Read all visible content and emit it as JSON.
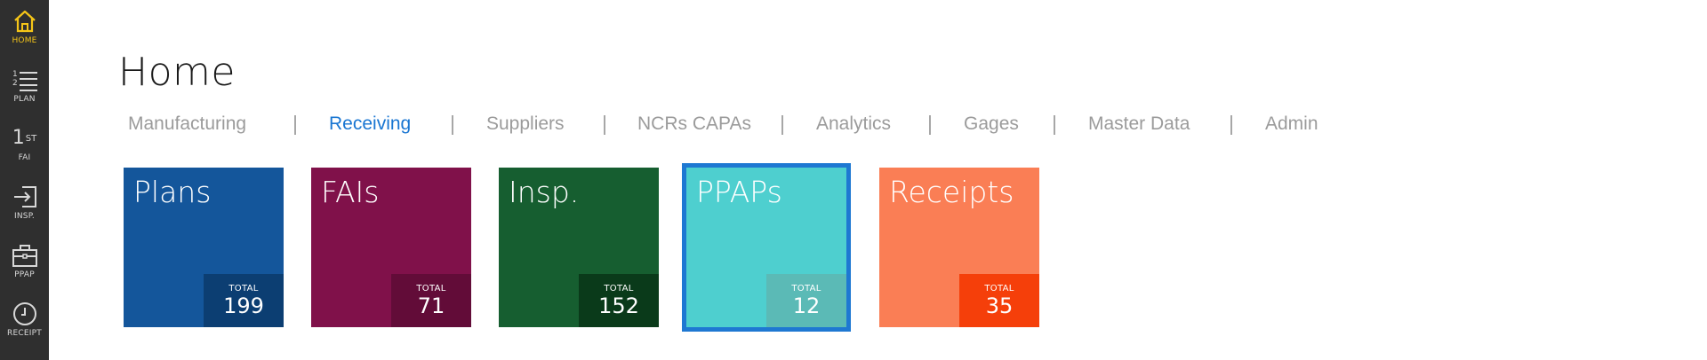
{
  "sidebar": {
    "items": [
      {
        "label": "HOME",
        "icon": "home-icon",
        "active": true
      },
      {
        "label": "PLAN",
        "icon": "numbered-list-icon",
        "active": false
      },
      {
        "label": "FAI",
        "icon": "first-icon",
        "glyph_main": "1",
        "glyph_sup": "ST",
        "active": false
      },
      {
        "label": "INSP.",
        "icon": "sign-in-icon",
        "active": false
      },
      {
        "label": "PPAP",
        "icon": "briefcase-icon",
        "active": false
      },
      {
        "label": "RECEIPT",
        "icon": "clock-icon",
        "active": false
      }
    ],
    "active_color": "#f5c518"
  },
  "page": {
    "title": "Home"
  },
  "tabs": [
    {
      "label": "Manufacturing",
      "active": false
    },
    {
      "label": "Receiving",
      "active": true
    },
    {
      "label": "Suppliers",
      "active": false
    },
    {
      "label": "NCRs CAPAs",
      "active": false
    },
    {
      "label": "Analytics",
      "active": false
    },
    {
      "label": "Gages",
      "active": false
    },
    {
      "label": "Master Data",
      "active": false
    },
    {
      "label": "Admin",
      "active": false
    }
  ],
  "tiles": [
    {
      "name": "Plans",
      "stat_label": "TOTAL",
      "stat_value": "199",
      "color": "#14569b",
      "stat_color": "#0c3e72",
      "selected": false
    },
    {
      "name": "FAIs",
      "stat_label": "TOTAL",
      "stat_value": "71",
      "color": "#80114a",
      "stat_color": "#620c38",
      "selected": false
    },
    {
      "name": "Insp.",
      "stat_label": "TOTAL",
      "stat_value": "152",
      "color": "#165e30",
      "stat_color": "#0a3a1a",
      "selected": false
    },
    {
      "name": "PPAPs",
      "stat_label": "TOTAL",
      "stat_value": "12",
      "color": "#4ecfcf",
      "stat_color": "#5bbab6",
      "selected": true
    },
    {
      "name": "Receipts",
      "stat_label": "TOTAL",
      "stat_value": "35",
      "color": "#fa7e55",
      "stat_color": "#f53f0a",
      "selected": false
    }
  ],
  "colors": {
    "active_tab": "#1976d2",
    "tab_text": "#9b9b9b",
    "rail_bg": "#2f2f2f",
    "selection_border": "#1e78d2"
  }
}
